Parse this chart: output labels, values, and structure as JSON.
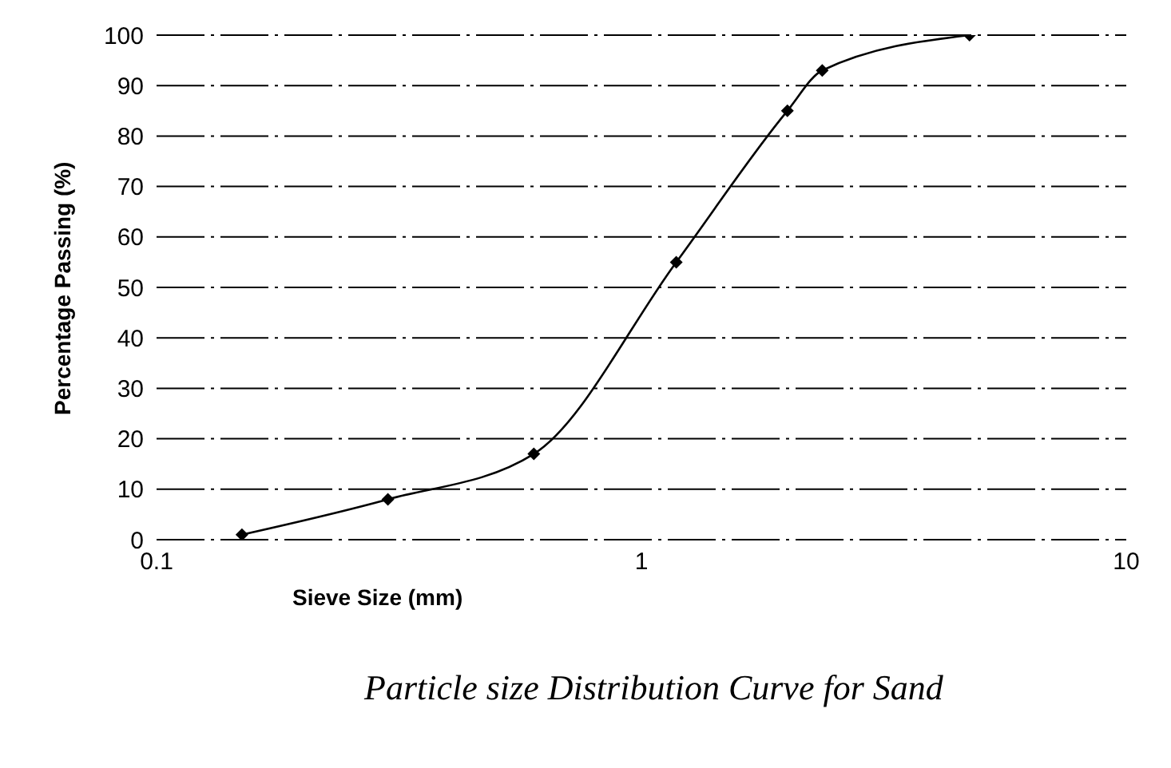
{
  "chart_data": {
    "type": "line",
    "title": "Particle size Distribution Curve for Sand",
    "xlabel": "Sieve Size (mm)",
    "ylabel": "Percentage Passing (%)",
    "x": [
      0.15,
      0.3,
      0.6,
      1.18,
      2,
      2.36,
      4.75
    ],
    "series": [
      {
        "color": "#000000",
        "values": [
          1,
          8,
          17,
          55,
          85,
          93,
          100
        ]
      }
    ],
    "log": "x",
    "xlim": [
      0.1,
      10
    ],
    "xticks": [
      0.1,
      1,
      10
    ],
    "ylim": [
      0,
      100
    ],
    "yticks": [
      0,
      10,
      20,
      30,
      40,
      50,
      60,
      70,
      80,
      90,
      100
    ],
    "grid": "y",
    "legend": false,
    "marker": "diamond",
    "line_style": "solid"
  }
}
